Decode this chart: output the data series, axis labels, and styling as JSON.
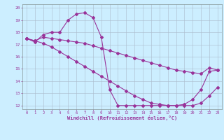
{
  "xlabel": "Windchill (Refroidissement éolien,°C)",
  "background_color": "#cceeff",
  "line_color": "#993399",
  "grid_color": "#aabbcc",
  "xlim": [
    -0.5,
    23.5
  ],
  "ylim": [
    11.7,
    20.3
  ],
  "xticks": [
    0,
    1,
    2,
    3,
    4,
    5,
    6,
    7,
    8,
    9,
    10,
    11,
    12,
    13,
    14,
    15,
    16,
    17,
    18,
    19,
    20,
    21,
    22,
    23
  ],
  "yticks": [
    12,
    13,
    14,
    15,
    16,
    17,
    18,
    19,
    20
  ],
  "line1_x": [
    0,
    1,
    2,
    3,
    4,
    5,
    6,
    7,
    8,
    9,
    10,
    11,
    12,
    13,
    14,
    15,
    16,
    17,
    18,
    19,
    20,
    21,
    22,
    23
  ],
  "line1_y": [
    17.5,
    17.2,
    17.8,
    18.0,
    18.0,
    19.0,
    19.5,
    19.6,
    19.2,
    17.6,
    13.3,
    12.0,
    12.0,
    12.0,
    12.0,
    12.0,
    12.0,
    12.0,
    12.0,
    12.0,
    12.0,
    12.2,
    12.8,
    13.5
  ],
  "line2_x": [
    0,
    1,
    2,
    3,
    4,
    5,
    6,
    7,
    8,
    9,
    10,
    11,
    12,
    13,
    14,
    15,
    16,
    17,
    18,
    19,
    20,
    21,
    22,
    23
  ],
  "line2_y": [
    17.5,
    17.3,
    17.6,
    17.5,
    17.4,
    17.3,
    17.2,
    17.1,
    16.9,
    16.7,
    16.5,
    16.3,
    16.1,
    15.9,
    15.7,
    15.5,
    15.3,
    15.1,
    14.9,
    14.8,
    14.7,
    14.6,
    15.1,
    14.9
  ],
  "line3_x": [
    0,
    1,
    2,
    3,
    4,
    5,
    6,
    7,
    8,
    9,
    10,
    11,
    12,
    13,
    14,
    15,
    16,
    17,
    18,
    19,
    20,
    21,
    22,
    23
  ],
  "line3_y": [
    17.5,
    17.3,
    17.1,
    16.8,
    16.4,
    16.0,
    15.6,
    15.2,
    14.8,
    14.4,
    14.0,
    13.6,
    13.2,
    12.8,
    12.5,
    12.2,
    12.1,
    12.0,
    12.0,
    12.1,
    12.5,
    13.3,
    14.8,
    14.9
  ]
}
